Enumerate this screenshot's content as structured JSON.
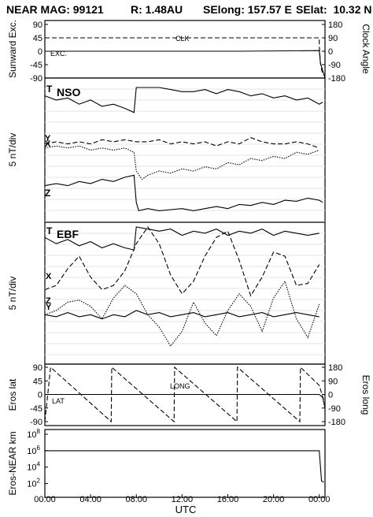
{
  "header": {
    "title": "NEAR MAG: 99121",
    "r": "R: 1.48AU",
    "selong": "SElong: 157.57 E",
    "selat": "SElat:  10.32 N"
  },
  "chart_data": [
    {
      "id": "clock",
      "type": "line",
      "ylabel_left": "Sunward Exc.",
      "ylabel_right": "Clock Angle",
      "left_ticks": [
        "90",
        "45",
        "0",
        "-45",
        "-90"
      ],
      "right_ticks": [
        "180",
        "90",
        "0",
        "-90",
        "-180"
      ],
      "ylim": [
        -90,
        90
      ],
      "series": [
        {
          "name": "CLK",
          "style": "dashed",
          "x": [
            0,
            24,
            24,
            24.1,
            24.3
          ],
          "y": [
            45,
            45,
            20,
            -40,
            -80
          ]
        },
        {
          "name": "EXC.",
          "style": "solid",
          "x": [
            0,
            17,
            24,
            24.1,
            24.5
          ],
          "y": [
            0,
            0,
            2,
            -40,
            -90
          ]
        }
      ]
    },
    {
      "id": "nso",
      "type": "line",
      "title": "NSO",
      "ylabel": "5 nT/div",
      "labels": [
        "T",
        "X",
        "Y",
        "Z"
      ],
      "series": [
        {
          "name": "T",
          "style": "solid",
          "x": [
            0,
            1,
            2,
            3,
            4,
            5,
            6,
            7,
            7.8,
            8.0,
            8.2,
            9,
            10,
            11,
            12,
            13,
            14,
            15,
            16,
            17,
            18,
            19,
            20,
            21,
            22,
            23,
            24,
            24.3
          ],
          "y": [
            5.6,
            5.4,
            5.5,
            5.2,
            5.4,
            5.1,
            5.2,
            5.0,
            4.8,
            6.0,
            6.0,
            6.0,
            6.0,
            5.9,
            5.8,
            5.8,
            5.9,
            5.7,
            5.9,
            5.8,
            5.6,
            5.7,
            5.5,
            5.6,
            5.4,
            5.5,
            5.2,
            5.3
          ]
        },
        {
          "name": "X",
          "style": "dotted",
          "x": [
            0,
            1,
            2,
            3,
            4,
            5,
            6,
            7,
            7.8,
            8.0,
            8.5,
            9,
            10,
            11,
            12,
            13,
            14,
            15,
            16,
            17,
            18,
            19,
            20,
            21,
            22,
            23,
            24
          ],
          "y": [
            3.1,
            3.2,
            3.1,
            3.2,
            3.0,
            3.1,
            3.0,
            3.1,
            2.9,
            2.0,
            1.6,
            1.8,
            2.0,
            1.9,
            2.1,
            2.0,
            2.2,
            2.1,
            2.4,
            2.3,
            2.6,
            2.5,
            2.7,
            2.6,
            2.9,
            2.8,
            3.0
          ]
        },
        {
          "name": "Y",
          "style": "dashed",
          "x": [
            0,
            1,
            2,
            3,
            4,
            5,
            6,
            7,
            8,
            9,
            10,
            11,
            12,
            13,
            14,
            15,
            16,
            17,
            18,
            19,
            20,
            21,
            22,
            23,
            24
          ],
          "y": [
            3.3,
            3.4,
            3.3,
            3.4,
            3.3,
            3.5,
            3.4,
            3.5,
            3.4,
            3.4,
            3.5,
            3.3,
            3.4,
            3.3,
            3.4,
            3.2,
            3.4,
            3.3,
            3.6,
            3.4,
            3.3,
            3.3,
            3.4,
            3.3,
            3.1
          ]
        },
        {
          "name": "Z",
          "style": "solid",
          "x": [
            0,
            1,
            2,
            3,
            4,
            5,
            6,
            7,
            7.8,
            8.0,
            8.2,
            9,
            10,
            11,
            12,
            13,
            14,
            15,
            16,
            17,
            18,
            19,
            20,
            21,
            22,
            23,
            24,
            24.3
          ],
          "y": [
            1.3,
            1.4,
            1.3,
            1.5,
            1.4,
            1.6,
            1.5,
            1.7,
            1.8,
            0.5,
            0.1,
            0.2,
            0.1,
            0.15,
            0.2,
            0.1,
            0.2,
            0.3,
            0.2,
            0.4,
            0.35,
            0.5,
            0.4,
            0.6,
            0.55,
            0.7,
            0.6,
            0.5
          ]
        }
      ]
    },
    {
      "id": "ebf",
      "type": "line",
      "title": "EBF",
      "ylabel": "5 nT/div",
      "labels": [
        "T",
        "X",
        "Z",
        "Y"
      ],
      "series": [
        {
          "name": "T",
          "style": "solid",
          "x": [
            0,
            1,
            2,
            3,
            4,
            5,
            6,
            7,
            7.8,
            8.0,
            9,
            10,
            11,
            12,
            13,
            14,
            15,
            16,
            17,
            18,
            19,
            20,
            21,
            22,
            23,
            24
          ],
          "y": [
            5.5,
            5.2,
            5.4,
            5.1,
            5.3,
            5.0,
            5.2,
            5.0,
            4.9,
            6.0,
            5.9,
            5.8,
            5.9,
            5.6,
            5.8,
            5.7,
            5.9,
            5.6,
            5.8,
            5.7,
            5.9,
            5.6,
            5.8,
            5.7,
            5.6,
            5.7
          ]
        },
        {
          "name": "X",
          "style": "dashed",
          "x": [
            0,
            1,
            2,
            3,
            4,
            5,
            6,
            7,
            8,
            9,
            10,
            11,
            12,
            13,
            14,
            15,
            16,
            17,
            18,
            19,
            20,
            21,
            22,
            23,
            24
          ],
          "y": [
            3.0,
            3.2,
            4.0,
            4.6,
            3.6,
            3.0,
            3.2,
            3.9,
            5.2,
            6.0,
            5.2,
            3.7,
            2.8,
            3.4,
            4.6,
            5.5,
            5.8,
            4.4,
            2.7,
            3.6,
            4.8,
            4.6,
            3.2,
            3.3,
            4.2
          ]
        },
        {
          "name": "Z",
          "style": "dotted",
          "x": [
            0,
            1,
            2,
            3,
            4,
            5,
            6,
            7,
            8,
            9,
            10,
            11,
            12,
            13,
            14,
            15,
            16,
            17,
            18,
            19,
            20,
            21,
            22,
            23,
            24
          ],
          "y": [
            1.8,
            2.0,
            2.4,
            2.5,
            2.2,
            1.6,
            2.6,
            3.2,
            2.8,
            1.8,
            1.2,
            0.3,
            1.0,
            2.4,
            1.4,
            0.8,
            2.0,
            2.8,
            2.2,
            1.0,
            2.6,
            3.4,
            1.6,
            0.7,
            2.3
          ]
        },
        {
          "name": "Y",
          "style": "solid",
          "x": [
            0,
            1,
            2,
            3,
            4,
            5,
            6,
            7,
            8,
            9,
            10,
            11,
            12,
            13,
            14,
            15,
            16,
            17,
            18,
            19,
            20,
            21,
            22,
            23,
            24
          ],
          "y": [
            1.8,
            1.7,
            1.9,
            1.7,
            1.8,
            1.6,
            1.8,
            1.7,
            2.0,
            1.8,
            1.9,
            1.7,
            1.8,
            1.9,
            1.7,
            1.8,
            1.9,
            1.7,
            1.8,
            1.9,
            1.7,
            1.8,
            1.9,
            1.8,
            1.7
          ]
        }
      ]
    },
    {
      "id": "eros",
      "type": "line",
      "ylabel_left": "Eros lat",
      "ylabel_right": "Eros long",
      "left_ticks": [
        "90",
        "45",
        "0",
        "-45",
        "-90"
      ],
      "right_ticks": [
        "180",
        "90",
        "0",
        "-90",
        "-180"
      ],
      "ylim": [
        -90,
        90
      ],
      "annotations": [
        "LONG",
        "LAT"
      ],
      "series": [
        {
          "name": "LONG",
          "style": "dashed",
          "x": [
            0,
            0.5,
            5.8,
            5.85,
            11.3,
            11.35,
            16.8,
            16.85,
            22.3,
            22.35,
            24,
            24.4
          ],
          "y": [
            -90,
            90,
            -90,
            90,
            -90,
            90,
            -90,
            90,
            -90,
            90,
            30,
            -20
          ]
        },
        {
          "name": "LAT",
          "style": "solid",
          "x": [
            0,
            24,
            24.3,
            24.5
          ],
          "y": [
            0,
            0,
            -10,
            -45
          ]
        }
      ]
    },
    {
      "id": "distance",
      "type": "line",
      "ylabel": "Eros-NEAR km",
      "yscale": "log",
      "ytick_labels": [
        "10^8",
        "10^6",
        "10^4",
        "10^2"
      ],
      "ylim": [
        10,
        100000000
      ],
      "series": [
        {
          "name": "distance",
          "style": "solid",
          "x": [
            0,
            24,
            24.2,
            24.4
          ],
          "y": [
            1000000,
            1000000,
            200,
            150
          ]
        }
      ]
    }
  ],
  "xaxis": {
    "ticks": [
      "00:00",
      "04:00",
      "08:00",
      "12:00",
      "16:00",
      "20:00",
      "00:00"
    ],
    "label": "UTC"
  }
}
